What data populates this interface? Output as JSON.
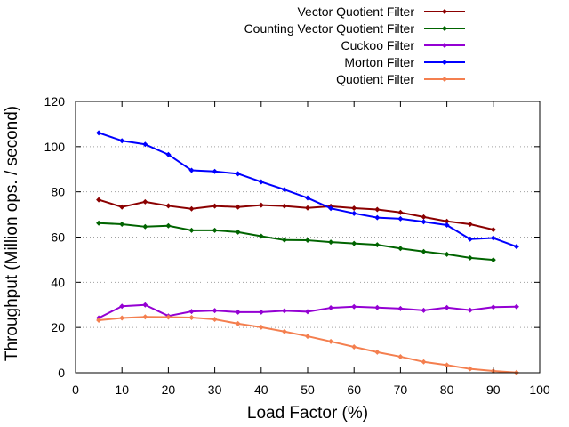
{
  "chart_data": {
    "type": "line",
    "title": "",
    "xlabel": "Load Factor (%)",
    "ylabel": "Throughput (Million ops. / second)",
    "xlim": [
      0,
      100
    ],
    "ylim": [
      0,
      120
    ],
    "xticks": [
      0,
      10,
      20,
      30,
      40,
      50,
      60,
      70,
      80,
      90,
      100
    ],
    "yticks": [
      0,
      20,
      40,
      60,
      80,
      100,
      120
    ],
    "grid": "horizontal dotted",
    "legend_position": "top-right, above plot",
    "series": [
      {
        "name": "Vector Quotient Filter",
        "color": "#8b0000",
        "x": [
          5,
          10,
          15,
          20,
          25,
          30,
          35,
          40,
          45,
          50,
          55,
          60,
          65,
          70,
          75,
          80,
          85,
          90
        ],
        "y": [
          76.5,
          73.3,
          75.6,
          73.8,
          72.5,
          73.7,
          73.3,
          74.1,
          73.7,
          72.9,
          73.6,
          72.8,
          72.2,
          70.9,
          68.9,
          67.0,
          65.7,
          63.3
        ]
      },
      {
        "name": "Counting Vector Quotient Filter",
        "color": "#006400",
        "x": [
          5,
          10,
          15,
          20,
          25,
          30,
          35,
          40,
          45,
          50,
          55,
          60,
          65,
          70,
          75,
          80,
          85,
          90
        ],
        "y": [
          66.2,
          65.7,
          64.6,
          65.0,
          63.0,
          63.0,
          62.2,
          60.4,
          58.7,
          58.6,
          57.8,
          57.2,
          56.6,
          55.0,
          53.6,
          52.4,
          50.8,
          49.9
        ]
      },
      {
        "name": "Cuckoo Filter",
        "color": "#9400d3",
        "x": [
          5,
          10,
          15,
          20,
          25,
          30,
          35,
          40,
          45,
          50,
          55,
          60,
          65,
          70,
          75,
          80,
          85,
          90,
          95
        ],
        "y": [
          24.2,
          29.4,
          30.0,
          25.1,
          27.1,
          27.5,
          26.8,
          26.8,
          27.4,
          27.0,
          28.7,
          29.2,
          28.8,
          28.4,
          27.6,
          28.8,
          27.7,
          29.0,
          29.2
        ]
      },
      {
        "name": "Morton Filter",
        "color": "#0000ff",
        "x": [
          5,
          10,
          15,
          20,
          25,
          30,
          35,
          40,
          45,
          50,
          55,
          60,
          65,
          70,
          75,
          80,
          85,
          90,
          95
        ],
        "y": [
          106.1,
          102.6,
          101.0,
          96.5,
          89.5,
          89.0,
          88.0,
          84.4,
          81.0,
          77.3,
          72.7,
          70.5,
          68.6,
          68.1,
          66.8,
          65.3,
          59.1,
          59.6,
          55.8
        ]
      },
      {
        "name": "Quotient Filter",
        "color": "#f47f4f",
        "x": [
          5,
          10,
          15,
          20,
          25,
          30,
          35,
          40,
          45,
          50,
          55,
          60,
          65,
          70,
          75,
          80,
          85,
          90,
          95
        ],
        "y": [
          23.2,
          24.2,
          24.7,
          24.6,
          24.4,
          23.6,
          21.7,
          20.1,
          18.2,
          16.1,
          13.8,
          11.4,
          9.1,
          7.1,
          4.8,
          3.4,
          1.7,
          0.8,
          0.1
        ]
      }
    ]
  }
}
